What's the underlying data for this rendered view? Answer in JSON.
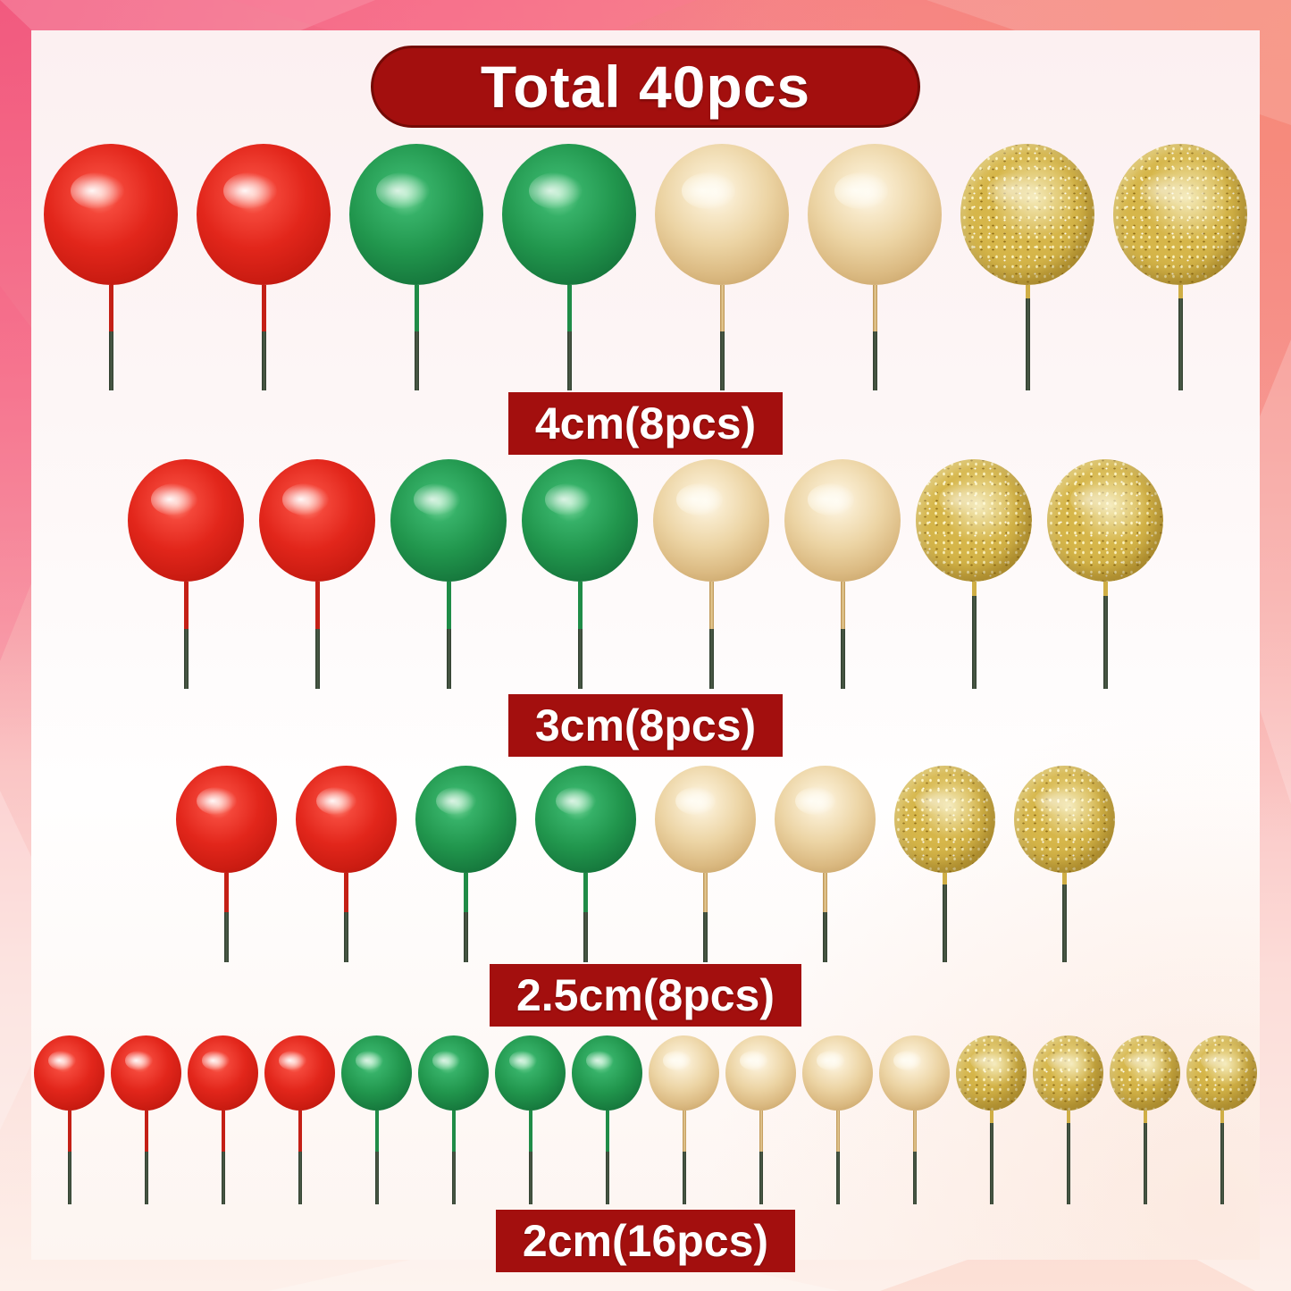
{
  "banner": {
    "label": "Total 40pcs"
  },
  "rows": [
    {
      "label": "4cm(8pcs)",
      "balls": [
        "red",
        "red",
        "green",
        "green",
        "gold",
        "gold",
        "glitter",
        "glitter"
      ]
    },
    {
      "label": "3cm(8pcs)",
      "balls": [
        "red",
        "red",
        "green",
        "green",
        "gold",
        "gold",
        "glitter",
        "glitter"
      ]
    },
    {
      "label": "2.5cm(8pcs)",
      "balls": [
        "red",
        "red",
        "green",
        "green",
        "gold",
        "gold",
        "glitter",
        "glitter"
      ]
    },
    {
      "label": "2cm(16pcs)",
      "balls": [
        "red",
        "red",
        "red",
        "red",
        "green",
        "green",
        "green",
        "green",
        "gold",
        "gold",
        "gold",
        "gold",
        "glitter",
        "glitter",
        "glitter",
        "glitter"
      ]
    }
  ],
  "colors": {
    "label_background": "#a30f0e",
    "label_text": "#ffffff",
    "ball_red": "#e2261b",
    "ball_green": "#21964d",
    "ball_gold": "#dbba82",
    "ball_glitter_gold": "#d6b64a",
    "stick_dark_green": "#3c4a39",
    "frame_pink": "#f4687e",
    "frame_coral": "#f69a8e",
    "frame_light_pink": "#fdeee9",
    "content_background": "#fdf4f4"
  }
}
